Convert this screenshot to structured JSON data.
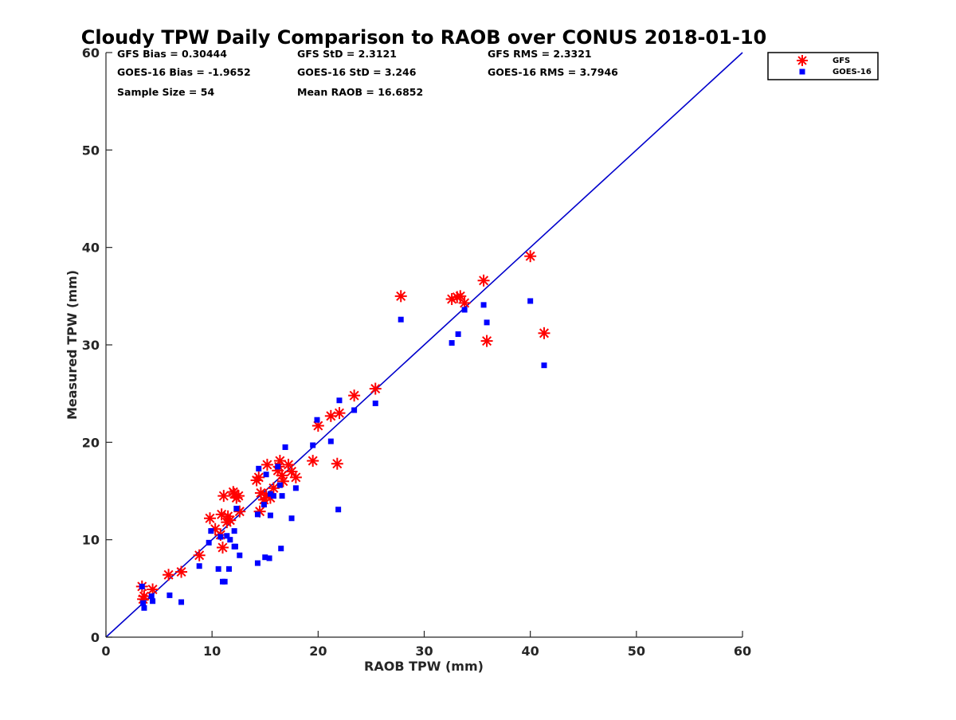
{
  "chart_data": {
    "type": "scatter",
    "title": "Cloudy TPW Daily Comparison to RAOB over CONUS 2018-01-10",
    "xlabel": "RAOB TPW (mm)",
    "ylabel": "Measured TPW (mm)",
    "xlim": [
      0,
      60
    ],
    "ylim": [
      0,
      60
    ],
    "xticks": [
      "0",
      "10",
      "20",
      "30",
      "40",
      "50",
      "60"
    ],
    "yticks": [
      "0",
      "10",
      "20",
      "30",
      "40",
      "50",
      "60"
    ],
    "grid": false,
    "legend_position": "outside top-right",
    "reference_line": {
      "x": [
        0,
        60
      ],
      "y": [
        0,
        60
      ],
      "color": "#0000CC"
    },
    "stats": [
      {
        "text": "GFS Bias = 0.30444"
      },
      {
        "text": "GFS StD = 2.3121"
      },
      {
        "text": "GFS RMS = 2.3321"
      },
      {
        "text": "GOES-16 Bias = -1.9652"
      },
      {
        "text": "GOES-16 StD = 3.246"
      },
      {
        "text": "GOES-16 RMS = 3.7946"
      },
      {
        "text": "Sample Size = 54"
      },
      {
        "text": "Mean RAOB = 16.6852"
      }
    ],
    "series": [
      {
        "name": "GFS",
        "marker": "asterisk",
        "color": "#FF0000",
        "x": [
          3.4,
          3.6,
          4.4,
          3.5,
          5.9,
          7.1,
          8.8,
          9.8,
          10.3,
          10.9,
          11.1,
          11.0,
          11.5,
          11.7,
          12.1,
          12.3,
          12.6,
          12.5,
          14.2,
          14.4,
          14.6,
          14.9,
          15.2,
          15.5,
          15.8,
          16.2,
          16.4,
          16.7,
          17.2,
          17.5,
          17.9,
          19.5,
          20.0,
          21.2,
          21.8,
          22.0,
          23.4,
          25.4,
          27.8,
          32.6,
          33.1,
          33.4,
          33.8,
          35.6,
          35.9,
          40.0,
          41.3,
          11.4,
          12.0,
          14.5,
          15.1,
          16.6,
          16.3,
          10.8
        ],
        "y": [
          5.2,
          4.2,
          4.9,
          3.9,
          6.4,
          6.7,
          8.4,
          12.2,
          11.1,
          12.6,
          14.5,
          9.2,
          12.4,
          12.0,
          14.7,
          14.3,
          12.9,
          14.5,
          16.1,
          16.4,
          14.8,
          14.1,
          17.7,
          14.3,
          15.3,
          17.1,
          18.1,
          16.0,
          17.7,
          17.0,
          16.4,
          18.1,
          21.7,
          22.7,
          17.8,
          23.0,
          24.8,
          25.5,
          35.0,
          34.7,
          34.9,
          35.0,
          34.3,
          36.6,
          30.4,
          39.1,
          31.2,
          11.8,
          14.9,
          12.9,
          14.6,
          16.6,
          17.5,
          10.5
        ]
      },
      {
        "name": "GOES-16",
        "marker": "square",
        "color": "#0000FF",
        "x": [
          3.4,
          3.5,
          3.6,
          4.3,
          4.4,
          6.0,
          7.1,
          8.8,
          9.7,
          9.9,
          10.6,
          10.8,
          11.0,
          11.2,
          11.4,
          11.6,
          12.1,
          12.1,
          12.3,
          12.6,
          14.3,
          14.4,
          14.9,
          15.0,
          15.1,
          15.4,
          15.5,
          15.8,
          16.2,
          16.5,
          16.6,
          16.9,
          17.5,
          17.9,
          19.5,
          19.9,
          21.2,
          21.9,
          22.0,
          23.4,
          25.4,
          27.8,
          32.6,
          33.2,
          33.8,
          35.6,
          35.9,
          40.0,
          41.3,
          11.7,
          12.2,
          14.3,
          15.5,
          16.4
        ],
        "y": [
          5.2,
          3.5,
          3.0,
          4.2,
          3.7,
          4.3,
          3.6,
          7.3,
          9.7,
          10.9,
          7.0,
          10.3,
          5.7,
          5.7,
          10.4,
          7.0,
          9.3,
          10.9,
          13.2,
          8.4,
          7.6,
          17.3,
          13.6,
          8.2,
          16.7,
          8.1,
          12.5,
          14.5,
          17.5,
          9.1,
          14.5,
          19.5,
          12.2,
          15.3,
          19.7,
          22.3,
          20.1,
          13.1,
          24.3,
          23.3,
          24.0,
          32.6,
          30.2,
          31.1,
          33.6,
          34.1,
          32.3,
          34.5,
          27.9,
          10.0,
          9.3,
          12.6,
          14.7,
          15.6
        ]
      }
    ]
  }
}
